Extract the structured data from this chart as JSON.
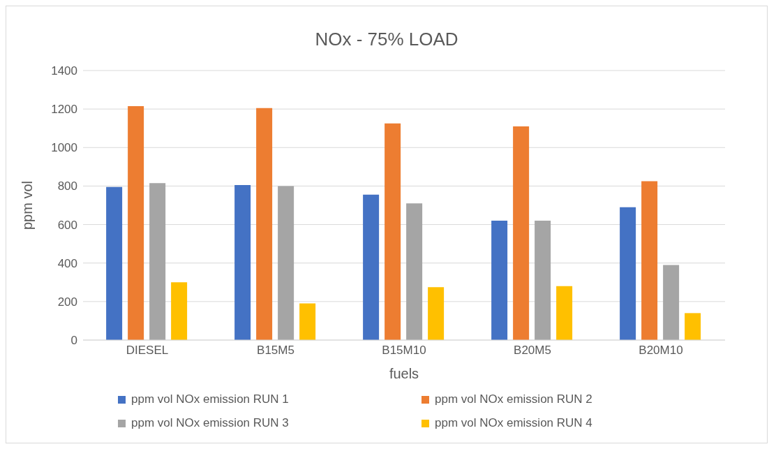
{
  "chart_data": {
    "type": "bar",
    "title": "NOx - 75% LOAD",
    "xlabel": "fuels",
    "ylabel": "ppm vol",
    "categories": [
      "DIESEL",
      "B15M5",
      "B15M10",
      "B20M5",
      "B20M10"
    ],
    "series": [
      {
        "name": "ppm vol NOx emission RUN 1",
        "color": "#4472c4",
        "values": [
          795,
          805,
          755,
          620,
          690
        ]
      },
      {
        "name": "ppm vol NOx emission RUN 2",
        "color": "#ed7d31",
        "values": [
          1215,
          1205,
          1125,
          1110,
          825
        ]
      },
      {
        "name": "ppm vol NOx emission RUN 3",
        "color": "#a5a5a5",
        "values": [
          815,
          800,
          710,
          620,
          390
        ]
      },
      {
        "name": "ppm vol NOx emission RUN 4",
        "color": "#ffc000",
        "values": [
          300,
          190,
          275,
          280,
          140
        ]
      }
    ],
    "ylim": [
      0,
      1400
    ],
    "yticks": [
      0,
      200,
      400,
      600,
      800,
      1000,
      1200,
      1400
    ],
    "grid": "y",
    "legend": "bottom"
  }
}
